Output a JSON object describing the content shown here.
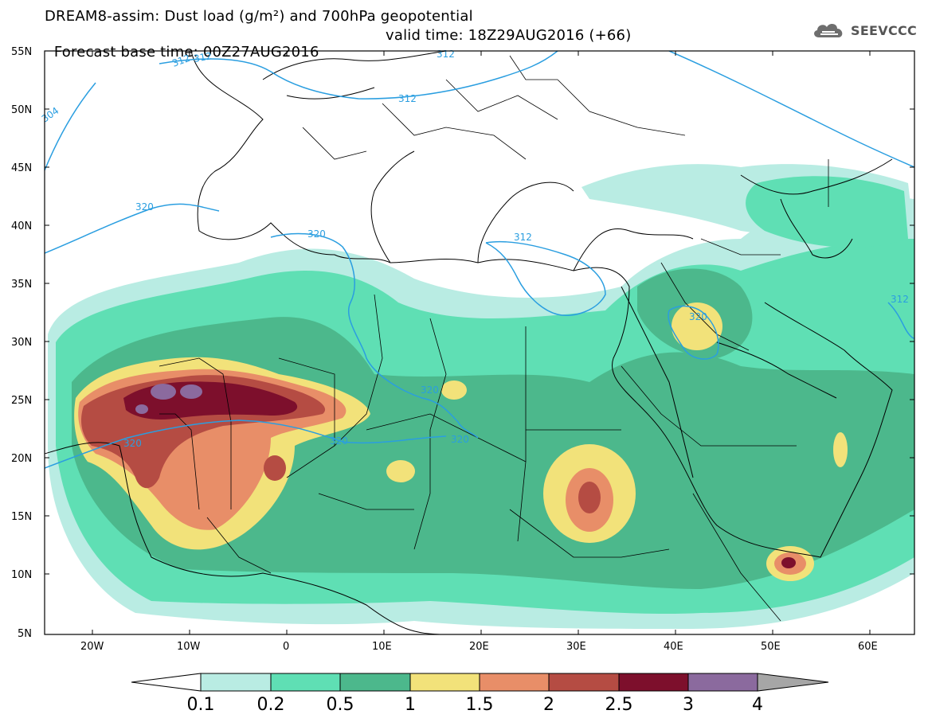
{
  "title": {
    "line1": "DREAM8-assim: Dust load (g/m²) and 700hPa geopotential",
    "line2_left": "Forecast base time: 00Z27AUG2016",
    "line2_right": "valid time: 18Z29AUG2016 (+66)"
  },
  "logo": {
    "text": "SEEVCCC",
    "icon": "cloud-icon"
  },
  "map": {
    "lat_labels": [
      "55N",
      "50N",
      "45N",
      "40N",
      "35N",
      "30N",
      "25N",
      "20N",
      "15N",
      "10N",
      "5N"
    ],
    "lon_labels": [
      "20W",
      "10W",
      "0",
      "10E",
      "20E",
      "30E",
      "40E",
      "50E",
      "60E"
    ],
    "contour_labels": [
      "312",
      "312",
      "304",
      "312",
      "312",
      "320",
      "320",
      "312",
      "320",
      "320",
      "320",
      "320",
      "320",
      "312"
    ]
  },
  "colorbar": {
    "labels": [
      "0.1",
      "0.2",
      "0.5",
      "1",
      "1.5",
      "2",
      "2.5",
      "3",
      "4"
    ],
    "colors": [
      "#ffffff",
      "#b9ece3",
      "#5fdfb4",
      "#4cb88c",
      "#f2e27a",
      "#e88e68",
      "#b54c43",
      "#7d0f2c",
      "#8b6a9e",
      "#a6a6a6"
    ]
  }
}
